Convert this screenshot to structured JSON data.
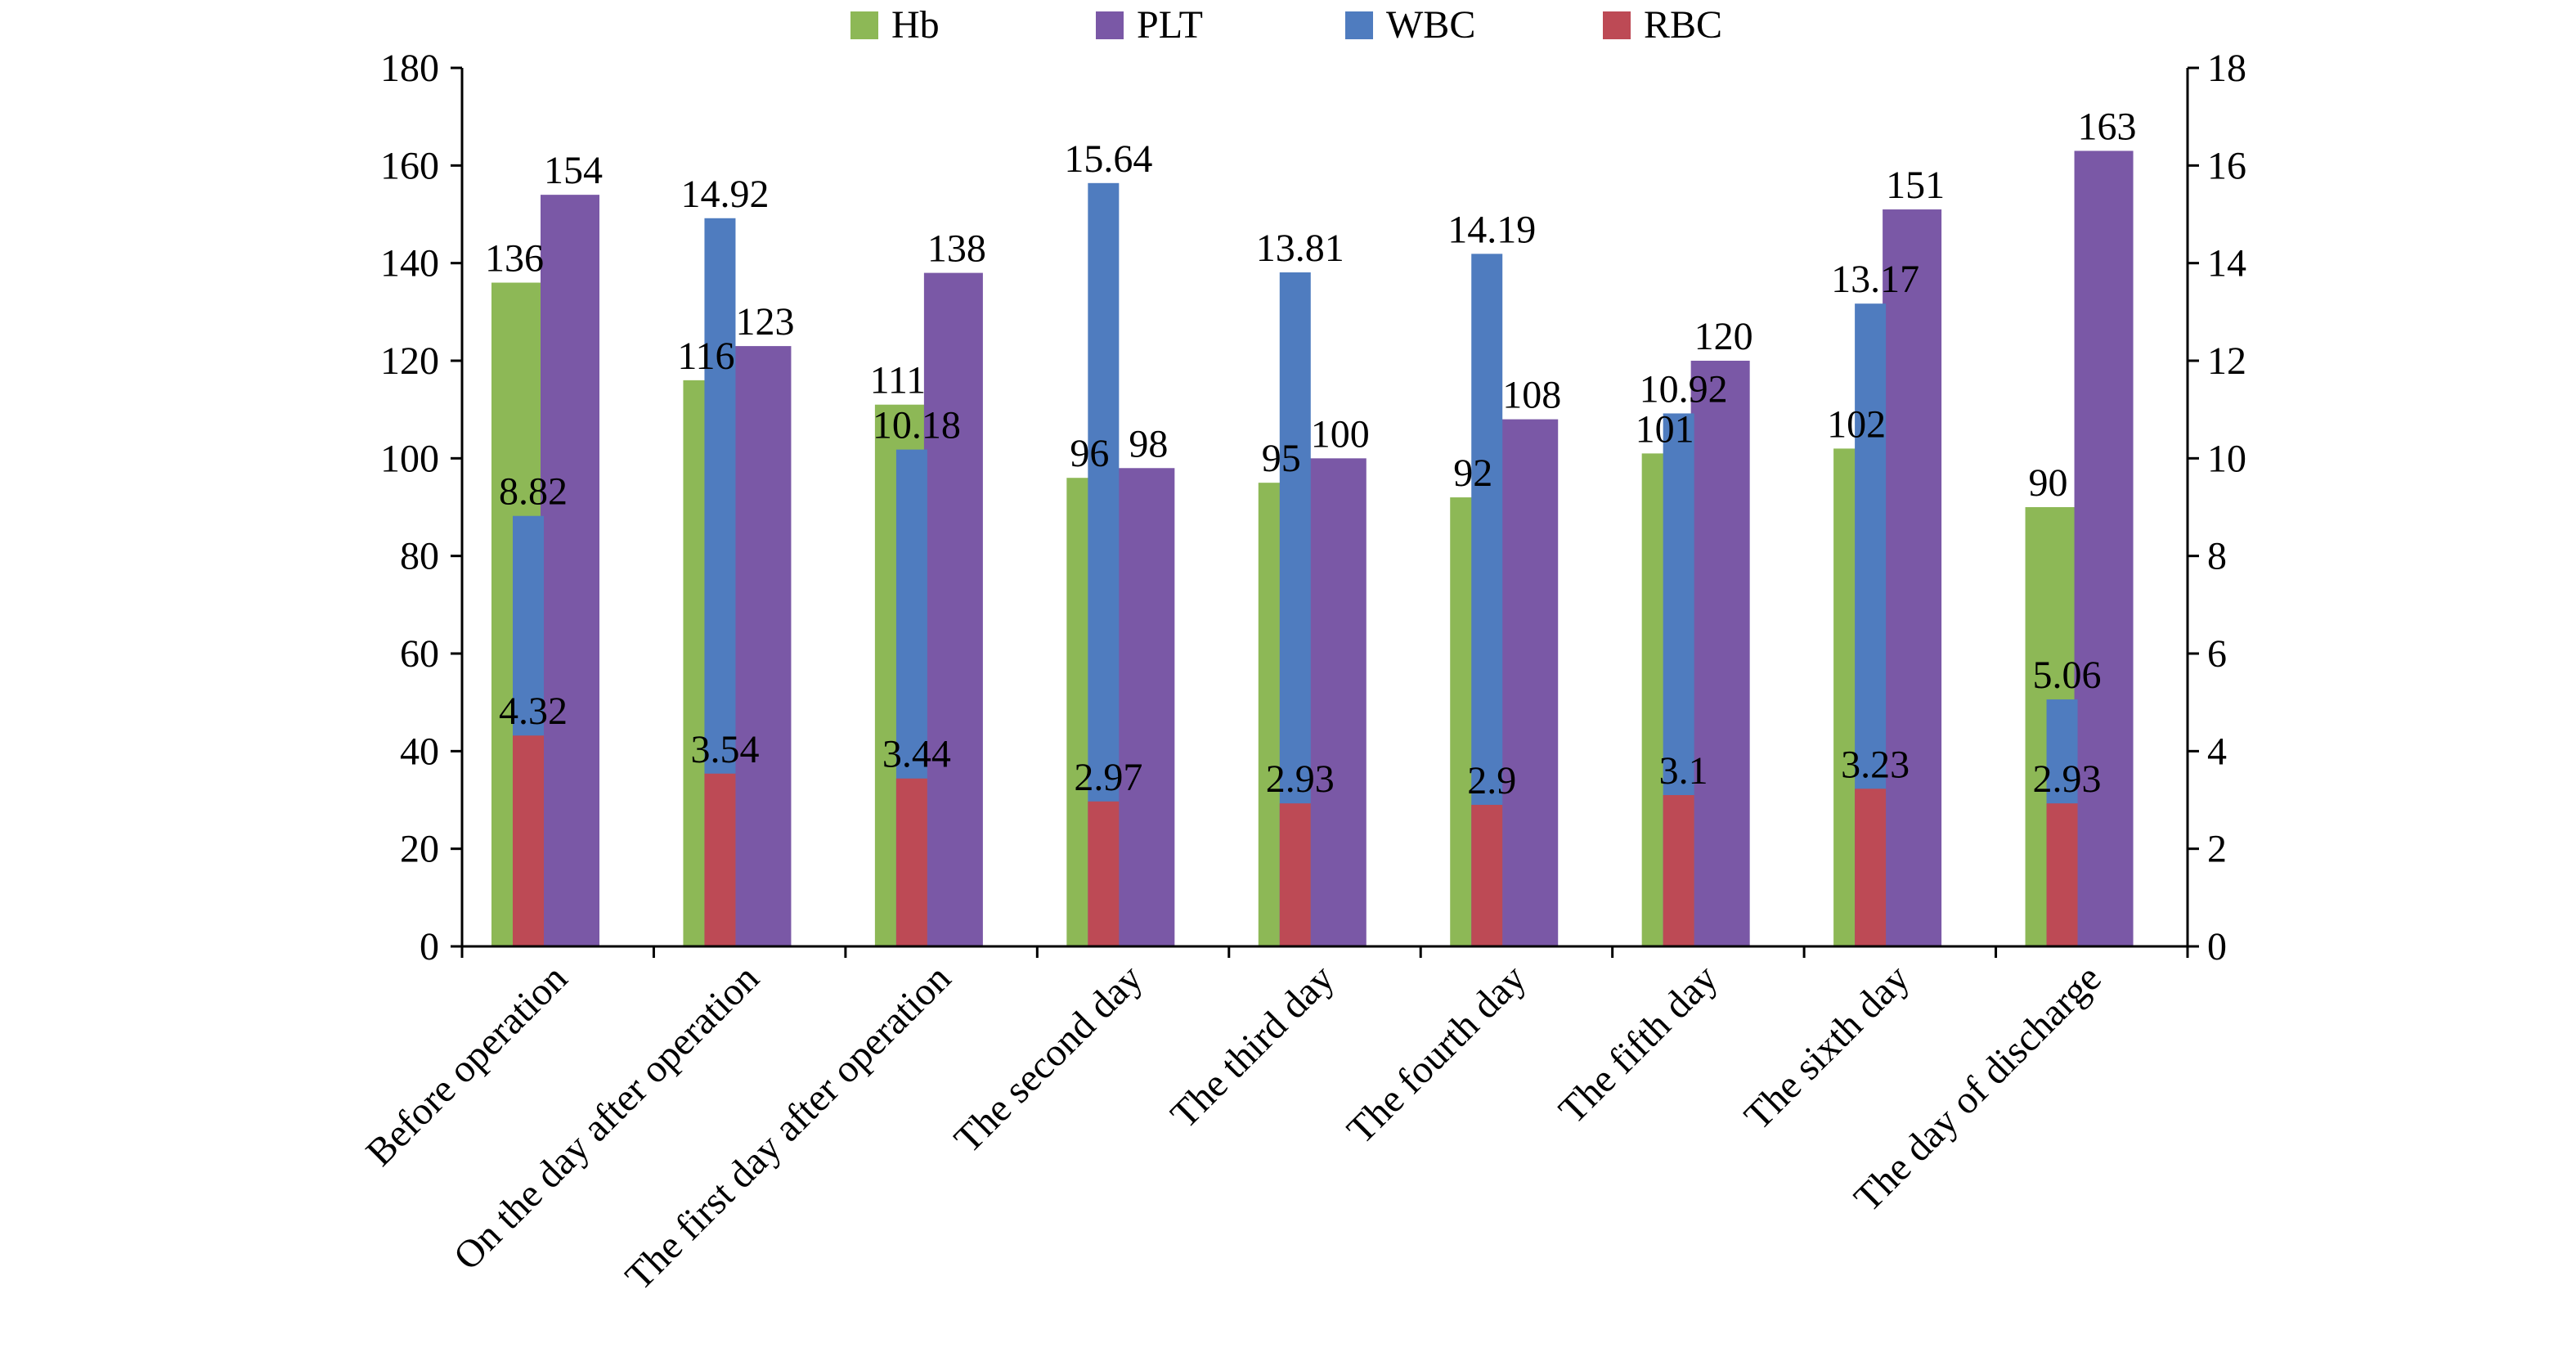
{
  "chart_data": {
    "type": "bar",
    "title": "",
    "categories": [
      "Before operation",
      "On the day after operation",
      "The first day after operation",
      "The second day",
      "The third day",
      "The fourth day",
      "The fifth day",
      "The sixth day",
      "The day of discharge"
    ],
    "series": [
      {
        "name": "Hb",
        "axis": "left",
        "color": "#8DB856",
        "values": [
          136,
          116,
          111,
          96,
          95,
          92,
          101,
          102,
          90
        ],
        "labels": [
          "136",
          "116",
          "111",
          "96",
          "95",
          "92",
          "101",
          "102",
          "90"
        ]
      },
      {
        "name": "PLT",
        "axis": "left",
        "color": "#7A58A6",
        "values": [
          154,
          123,
          138,
          98,
          100,
          108,
          120,
          151,
          163
        ],
        "labels": [
          "154",
          "123",
          "138",
          "98",
          "100",
          "108",
          "120",
          "151",
          "163"
        ]
      },
      {
        "name": "WBC",
        "axis": "right",
        "color": "#4F7CBF",
        "values": [
          8.82,
          14.92,
          10.18,
          15.64,
          13.81,
          14.19,
          10.92,
          13.17,
          5.06
        ],
        "labels": [
          "8.82",
          "14.92",
          "10.18",
          "15.64",
          "13.81",
          "14.19",
          "10.92",
          "13.17",
          "5.06"
        ]
      },
      {
        "name": "RBC",
        "axis": "right",
        "color": "#BD4A55",
        "values": [
          4.32,
          3.54,
          3.44,
          2.97,
          2.93,
          2.9,
          3.1,
          3.23,
          2.93
        ],
        "labels": [
          "4.32",
          "3.54",
          "3.44",
          "2.97",
          "2.93",
          "2.9",
          "3.1",
          "3.23",
          "2.93"
        ]
      }
    ],
    "y_left": {
      "range": [
        0,
        180
      ],
      "ticks": [
        0,
        20,
        40,
        60,
        80,
        100,
        120,
        140,
        160,
        180
      ],
      "tick_labels": [
        "0",
        "20",
        "40",
        "60",
        "80",
        "100",
        "120",
        "140",
        "160",
        "180"
      ]
    },
    "y_right": {
      "range": [
        0,
        18
      ],
      "ticks": [
        0,
        2,
        4,
        6,
        8,
        10,
        12,
        14,
        16,
        18
      ],
      "tick_labels": [
        "0",
        "2",
        "4",
        "6",
        "8",
        "10",
        "12",
        "14",
        "16",
        "18"
      ]
    },
    "legend": {
      "position": "top-center",
      "entries": [
        "Hb",
        "PLT",
        "WBC",
        "RBC"
      ]
    },
    "grid": false
  }
}
